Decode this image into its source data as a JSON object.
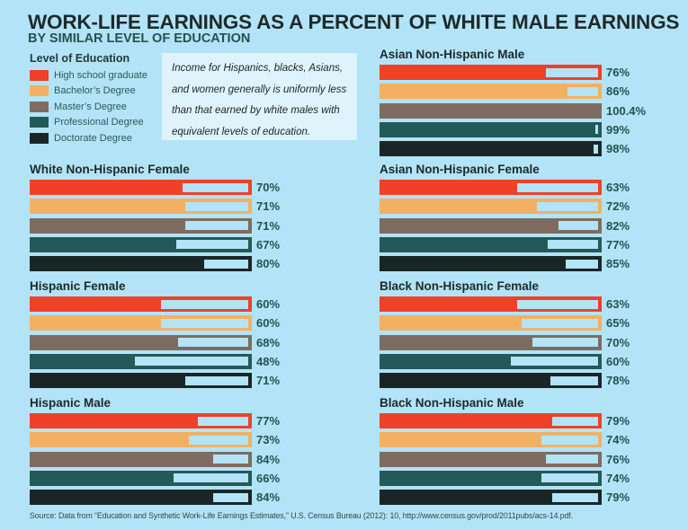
{
  "chart_data": {
    "type": "bar",
    "orientation": "horizontal",
    "title": "WORK-LIFE EARNINGS AS A PERCENT OF WHITE MALE EARNINGS",
    "subtitle": "BY SIMILAR LEVEL OF EDUCATION",
    "unit": "% of white male earnings",
    "xlim": [
      0,
      100
    ],
    "legend": {
      "title": "Level of Education",
      "placement": "top-left",
      "entries": [
        {
          "name": "High school graduate",
          "color": "#ef4128"
        },
        {
          "name": "Bachelor’s Degree",
          "color": "#f4b062"
        },
        {
          "name": "Master’s Degree",
          "color": "#7d6c5f"
        },
        {
          "name": "Professional Degree",
          "color": "#235a58"
        },
        {
          "name": "Doctorate Degree",
          "color": "#1a2626"
        }
      ]
    },
    "categories": [
      "High school graduate",
      "Bachelor’s Degree",
      "Master’s Degree",
      "Professional Degree",
      "Doctorate Degree"
    ],
    "panels": [
      {
        "name": "Asian Non-Hispanic Male",
        "column": "right",
        "values": [
          76,
          86,
          100.4,
          99,
          98
        ],
        "labels": [
          "76%",
          "86%",
          "100.4%",
          "99%",
          "98%"
        ]
      },
      {
        "name": "White Non-Hispanic Female",
        "column": "left",
        "values": [
          70,
          71,
          71,
          67,
          80
        ],
        "labels": [
          "70%",
          "71%",
          "71%",
          "67%",
          "80%"
        ]
      },
      {
        "name": "Asian Non-Hispanic Female",
        "column": "right",
        "values": [
          63,
          72,
          82,
          77,
          85
        ],
        "labels": [
          "63%",
          "72%",
          "82%",
          "77%",
          "85%"
        ]
      },
      {
        "name": "Hispanic Female",
        "column": "left",
        "values": [
          60,
          60,
          68,
          48,
          71
        ],
        "labels": [
          "60%",
          "60%",
          "68%",
          "48%",
          "71%"
        ]
      },
      {
        "name": "Black Non-Hispanic Female",
        "column": "right",
        "values": [
          63,
          65,
          70,
          60,
          78
        ],
        "labels": [
          "63%",
          "65%",
          "70%",
          "60%",
          "78%"
        ]
      },
      {
        "name": "Hispanic Male",
        "column": "left",
        "values": [
          77,
          73,
          84,
          66,
          84
        ],
        "labels": [
          "77%",
          "73%",
          "84%",
          "66%",
          "84%"
        ]
      },
      {
        "name": "Black Non-Hispanic Male",
        "column": "right",
        "values": [
          79,
          74,
          76,
          74,
          79
        ],
        "labels": [
          "79%",
          "74%",
          "76%",
          "74%",
          "79%"
        ]
      }
    ]
  },
  "note": {
    "lines": [
      "Income for Hispanics, blacks, Asians,",
      "and women generally is uniformly less",
      "than that earned by white males with",
      "equivalent levels of education."
    ]
  },
  "source": "Source: Data from “Education and Synthetic Work-Life Earnings Estimates,” U.S. Census Bureau (2012): 10, http://www.census.gov/prod/2011pubs/acs-14.pdf.",
  "colors": {
    "background": "#b3e3f7",
    "gap": "#b3e3f7"
  }
}
